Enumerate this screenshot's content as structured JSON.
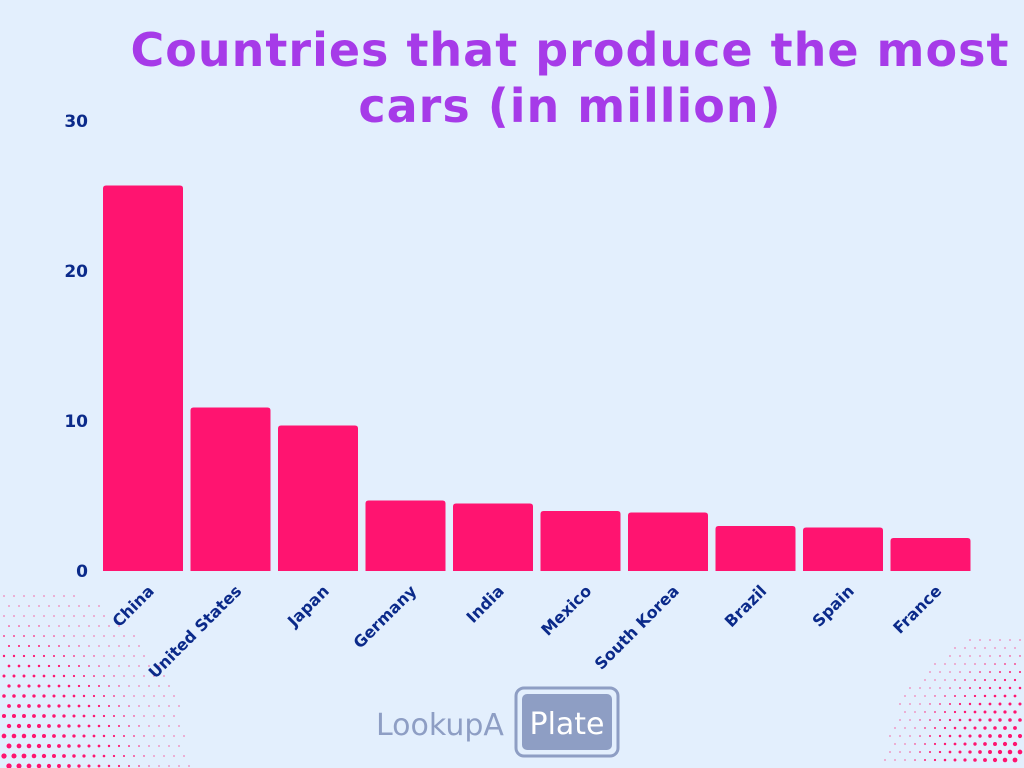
{
  "chart_data": {
    "type": "bar",
    "title": "Countries that produce the most cars (in million)",
    "xlabel": "",
    "ylabel": "",
    "ylim": [
      0,
      30
    ],
    "yticks": [
      0,
      10,
      20,
      30
    ],
    "grid": false,
    "categories": [
      "China",
      "United States",
      "Japan",
      "Germany",
      "India",
      "Mexico",
      "South Korea",
      "Brazil",
      "Spain",
      "France"
    ],
    "values": [
      25.7,
      10.9,
      9.7,
      4.7,
      4.5,
      4.0,
      3.9,
      3.0,
      2.9,
      2.2
    ],
    "colors": {
      "bar": "#ff1470",
      "title": "#a63be8",
      "labels": "#0b2a8a",
      "background": "#e3effd"
    }
  },
  "logo": {
    "text_left": "LookupA",
    "text_right": "Plate"
  }
}
